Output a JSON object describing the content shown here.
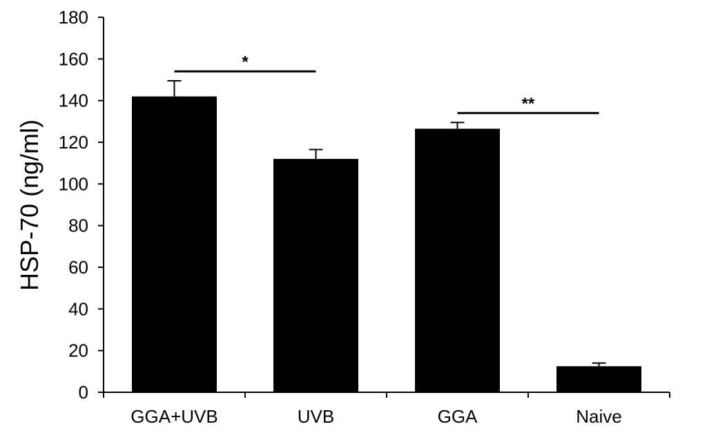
{
  "chart_data": {
    "type": "bar",
    "title": "",
    "xlabel": "",
    "ylabel": "HSP-70 (ng/ml)",
    "ylim": [
      0,
      180
    ],
    "yticks": [
      0,
      20,
      40,
      60,
      80,
      100,
      120,
      140,
      160,
      180
    ],
    "grid": false,
    "categories": [
      "GGA+UVB",
      "UVB",
      "GGA",
      "Naive"
    ],
    "values": [
      142,
      112,
      126.5,
      12.5
    ],
    "errors": [
      7.5,
      4.5,
      3,
      1.5
    ],
    "bar_color": "#000000",
    "significance": [
      {
        "from": 0,
        "to": 1,
        "level": 154,
        "label": "*"
      },
      {
        "from": 2,
        "to": 3,
        "level": 134,
        "label": "**"
      }
    ]
  }
}
